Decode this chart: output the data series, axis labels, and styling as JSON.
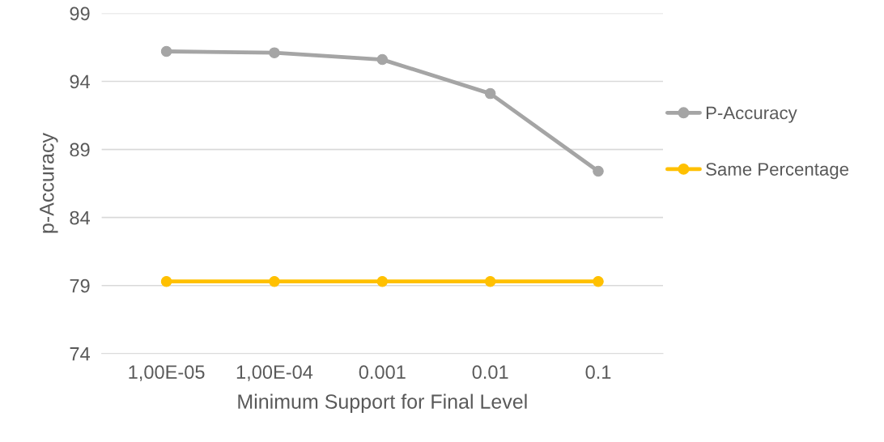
{
  "chart_data": {
    "type": "line",
    "xlabel": "Minimum Support for Final Level",
    "ylabel": "p-Accuracy",
    "categories": [
      "1,00E-05",
      "1,00E-04",
      "0.001",
      "0.01",
      "0.1"
    ],
    "series": [
      {
        "name": "P-Accuracy",
        "color": "#a5a5a5",
        "values": [
          96.2,
          96.1,
          95.6,
          93.1,
          87.4
        ]
      },
      {
        "name": "Same Percentage",
        "color": "#ffc000",
        "values": [
          79.3,
          79.3,
          79.3,
          79.3,
          79.3
        ]
      }
    ],
    "ylim": [
      74,
      99
    ],
    "yticks": [
      74,
      79,
      84,
      89,
      94,
      99
    ],
    "grid": "y",
    "legend": "right",
    "marker": "circle",
    "line_style": "solid"
  }
}
